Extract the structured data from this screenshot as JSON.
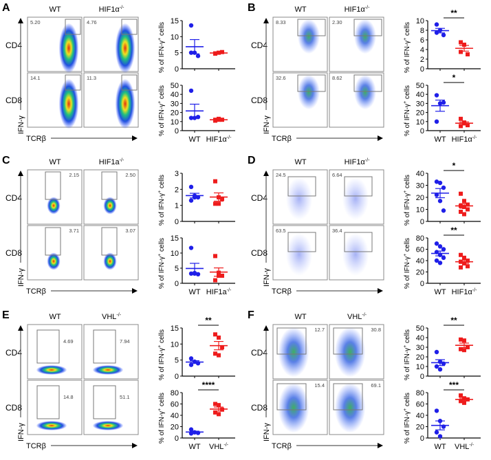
{
  "common": {
    "wt_label": "WT",
    "row_labels": [
      "CD4",
      "CD8"
    ],
    "y_axis_flow": "IFN-γ",
    "x_axis_flow": "TCRβ",
    "chart_ylabel": {
      "pre": "% of IFN-γ",
      "sup": "+",
      "post": " cells"
    },
    "colors": {
      "wt": "#1f1fe8",
      "ko": "#ee1c1c"
    }
  },
  "chart_data": [
    {
      "panel": "A",
      "type": "scatter",
      "genotype": "HIF1α",
      "genotype_sup": "-/-",
      "gates": [
        [
          "5.20",
          "4.76"
        ],
        [
          "14.1",
          "11.3"
        ]
      ],
      "charts": [
        {
          "row": "CD4",
          "ylim": [
            0,
            15
          ],
          "ticks": [
            0,
            5,
            10,
            15
          ],
          "wt": [
            13.5,
            5,
            4,
            5
          ],
          "ko": [
            4.8,
            5,
            5.2,
            4.7
          ],
          "sig": ""
        },
        {
          "row": "CD8",
          "ylim": [
            0,
            50
          ],
          "ticks": [
            0,
            10,
            20,
            30,
            40,
            50
          ],
          "wt": [
            44,
            14,
            15,
            14
          ],
          "ko": [
            12,
            13,
            12,
            11,
            12
          ],
          "sig": ""
        }
      ]
    },
    {
      "panel": "B",
      "type": "scatter",
      "genotype": "HIF1α",
      "genotype_sup": "-/-",
      "gates": [
        [
          "8.33",
          "2.30"
        ],
        [
          "32.6",
          "8.62"
        ]
      ],
      "charts": [
        {
          "row": "CD4",
          "ylim": [
            0,
            10
          ],
          "ticks": [
            0,
            2,
            4,
            6,
            8,
            10
          ],
          "wt": [
            9.2,
            8,
            7,
            7.5
          ],
          "ko": [
            5.5,
            5,
            3,
            3.5
          ],
          "sig": "**"
        },
        {
          "row": "CD8",
          "ylim": [
            0,
            50
          ],
          "ticks": [
            0,
            10,
            20,
            30,
            40,
            50
          ],
          "wt": [
            39,
            30,
            31,
            10
          ],
          "ko": [
            13,
            8,
            6,
            5,
            9
          ],
          "sig": "*"
        }
      ]
    },
    {
      "panel": "C",
      "type": "scatter",
      "genotype": "HIF1a",
      "genotype_sup": "-/-",
      "gates": [
        [
          "2.15",
          "2.50"
        ],
        [
          "3.71",
          "3.07"
        ]
      ],
      "charts": [
        {
          "row": "CD4",
          "ylim": [
            0,
            3
          ],
          "ticks": [
            0,
            1,
            2,
            3
          ],
          "wt": [
            2.15,
            1.6,
            1.5,
            1.3,
            1.5
          ],
          "ko": [
            2.5,
            1.5,
            1.4,
            1.1,
            1.1
          ],
          "sig": ""
        },
        {
          "row": "CD8",
          "ylim": [
            0,
            15
          ],
          "ticks": [
            0,
            5,
            10,
            15
          ],
          "wt": [
            11.7,
            3.2,
            3,
            3.2,
            3.4
          ],
          "ko": [
            9,
            3.5,
            2.5,
            1,
            2.5
          ],
          "sig": ""
        }
      ]
    },
    {
      "panel": "D",
      "type": "scatter",
      "genotype": "HIF1α",
      "genotype_sup": "-/-",
      "gates": [
        [
          "24.5",
          "6.64"
        ],
        [
          "63.5",
          "36.4"
        ]
      ],
      "charts": [
        {
          "row": "CD4",
          "ylim": [
            0,
            40
          ],
          "ticks": [
            0,
            10,
            20,
            30,
            40
          ],
          "wt": [
            33,
            32,
            28,
            22,
            17,
            9
          ],
          "ko": [
            23,
            17,
            14,
            13,
            12,
            10,
            8,
            6
          ],
          "sig": "*"
        },
        {
          "row": "CD8",
          "ylim": [
            0,
            80
          ],
          "ticks": [
            0,
            20,
            40,
            60,
            80
          ],
          "wt": [
            70,
            65,
            60,
            55,
            50,
            45,
            40,
            36
          ],
          "ko": [
            50,
            45,
            40,
            38,
            35,
            30,
            28
          ],
          "sig": "**"
        }
      ]
    },
    {
      "panel": "E",
      "type": "scatter",
      "genotype": "VHL",
      "genotype_sup": "-/-",
      "gates": [
        [
          "4.69",
          "7.94"
        ],
        [
          "14.8",
          "51.1"
        ]
      ],
      "charts": [
        {
          "row": "CD4",
          "ylim": [
            0,
            15
          ],
          "ticks": [
            0,
            5,
            10,
            15
          ],
          "wt": [
            5.5,
            4.5,
            4,
            3.5
          ],
          "ko": [
            13,
            12,
            9,
            7,
            6.5
          ],
          "sig": "**"
        },
        {
          "row": "CD8",
          "ylim": [
            0,
            80
          ],
          "ticks": [
            0,
            20,
            40,
            60,
            80
          ],
          "wt": [
            15,
            10,
            9,
            8
          ],
          "ko": [
            60,
            58,
            50,
            45,
            42
          ],
          "sig": "****"
        }
      ]
    },
    {
      "panel": "F",
      "type": "scatter",
      "genotype": "VHL",
      "genotype_sup": "-/-",
      "gates": [
        [
          "12.7",
          "30.8"
        ],
        [
          "15.4",
          "69.1"
        ]
      ],
      "charts": [
        {
          "row": "CD4",
          "ylim": [
            0,
            50
          ],
          "ticks": [
            0,
            10,
            20,
            30,
            40,
            50
          ],
          "wt": [
            25,
            15,
            13,
            10,
            7
          ],
          "ko": [
            38,
            37,
            30,
            28,
            27
          ],
          "sig": "**"
        },
        {
          "row": "CD8",
          "ylim": [
            0,
            80
          ],
          "ticks": [
            0,
            20,
            40,
            60,
            80
          ],
          "wt": [
            48,
            30,
            20,
            10,
            3
          ],
          "ko": [
            75,
            70,
            68,
            65,
            62
          ],
          "sig": "***"
        }
      ]
    }
  ]
}
